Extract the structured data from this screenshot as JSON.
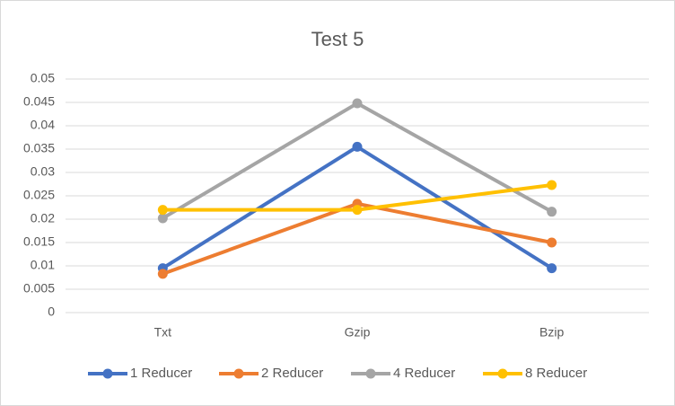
{
  "chart_data": {
    "type": "line",
    "title": "Test 5",
    "categories": [
      "Txt",
      "Gzip",
      "Bzip"
    ],
    "ylim": [
      0,
      0.05
    ],
    "yticks": [
      "0",
      "0.005",
      "0.01",
      "0.015",
      "0.02",
      "0.025",
      "0.03",
      "0.035",
      "0.04",
      "0.045",
      "0.05"
    ],
    "grid": true,
    "legend_position": "bottom",
    "series": [
      {
        "name": "1 Reducer",
        "color": "#4472C4",
        "values": [
          0.0095,
          0.0355,
          0.0095
        ]
      },
      {
        "name": "2 Reducer",
        "color": "#ED7D31",
        "values": [
          0.0083,
          0.0233,
          0.015
        ]
      },
      {
        "name": "4 Reducer",
        "color": "#A5A5A5",
        "values": [
          0.0202,
          0.0448,
          0.0216
        ]
      },
      {
        "name": "8 Reducer",
        "color": "#FFC000",
        "values": [
          0.022,
          0.022,
          0.0273
        ]
      }
    ]
  }
}
